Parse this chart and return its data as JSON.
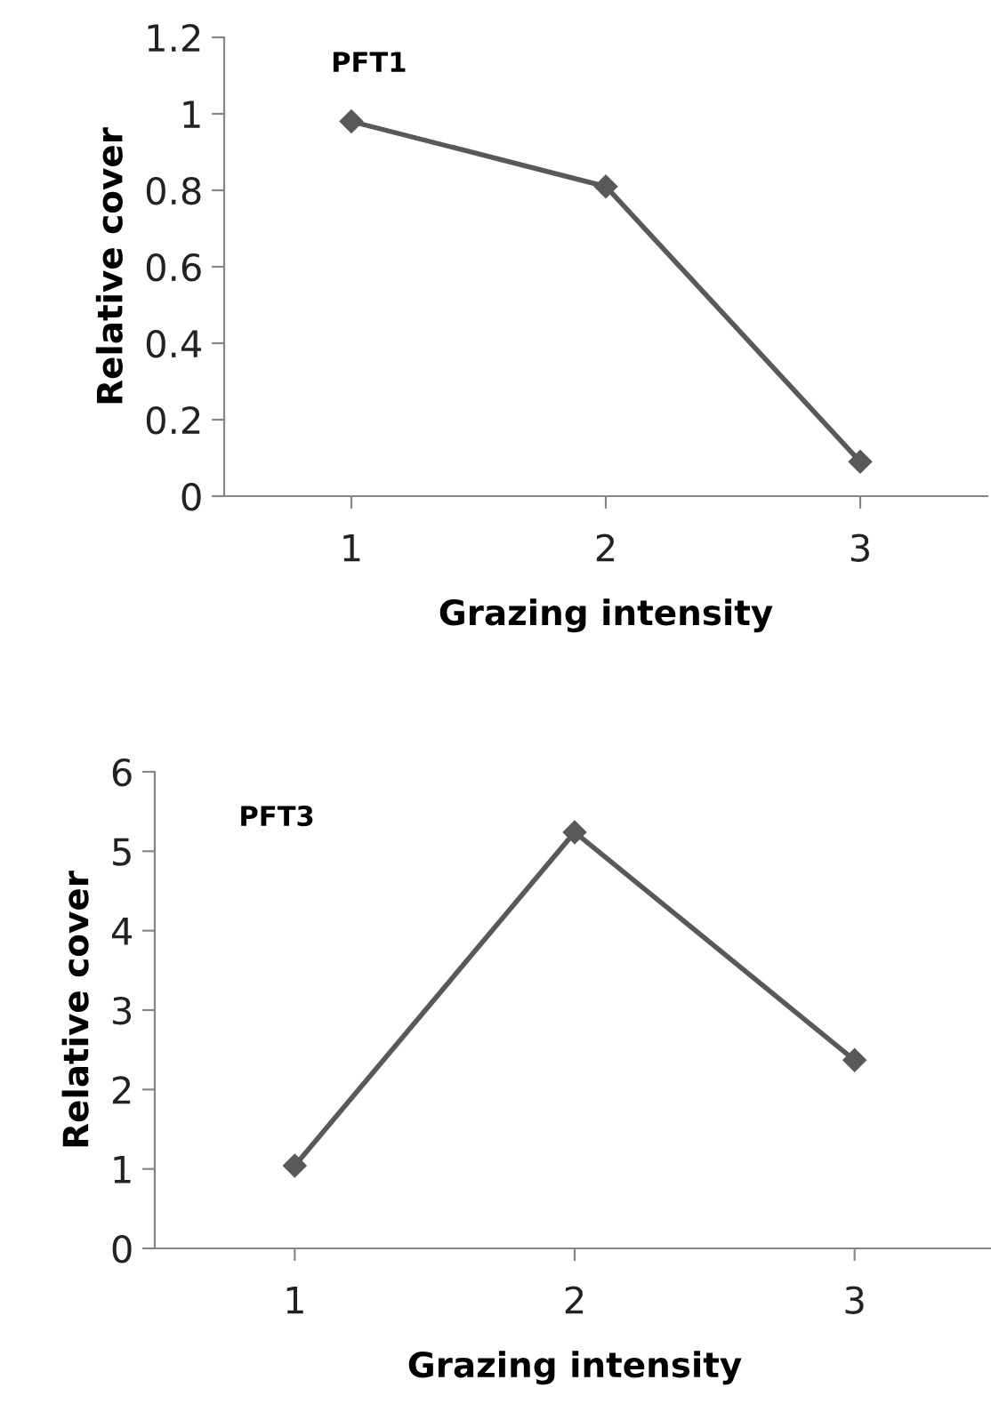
{
  "chart_data": [
    {
      "type": "line",
      "title": "PFT1",
      "xlabel": "Grazing intensity",
      "ylabel": "Relative cover",
      "categories": [
        "1",
        "2",
        "3"
      ],
      "series": [
        {
          "color": "#595959",
          "values": [
            0.98,
            0.81,
            0.09
          ]
        }
      ],
      "ylim": [
        0,
        1.2
      ],
      "yticks": [
        0,
        0.2,
        0.4,
        0.6,
        0.8,
        1,
        1.2
      ],
      "grid": false,
      "legend": false,
      "marker": "diamond",
      "line_style": "solid"
    },
    {
      "type": "line",
      "title": "PFT3",
      "xlabel": "Grazing intensity",
      "ylabel": "Relative cover",
      "categories": [
        "1",
        "2",
        "3"
      ],
      "series": [
        {
          "color": "#595959",
          "values": [
            1.04,
            5.24,
            2.37
          ]
        }
      ],
      "ylim": [
        0,
        6
      ],
      "yticks": [
        0,
        1,
        2,
        3,
        4,
        5,
        6
      ],
      "grid": false,
      "legend": false,
      "marker": "diamond",
      "line_style": "solid"
    }
  ]
}
